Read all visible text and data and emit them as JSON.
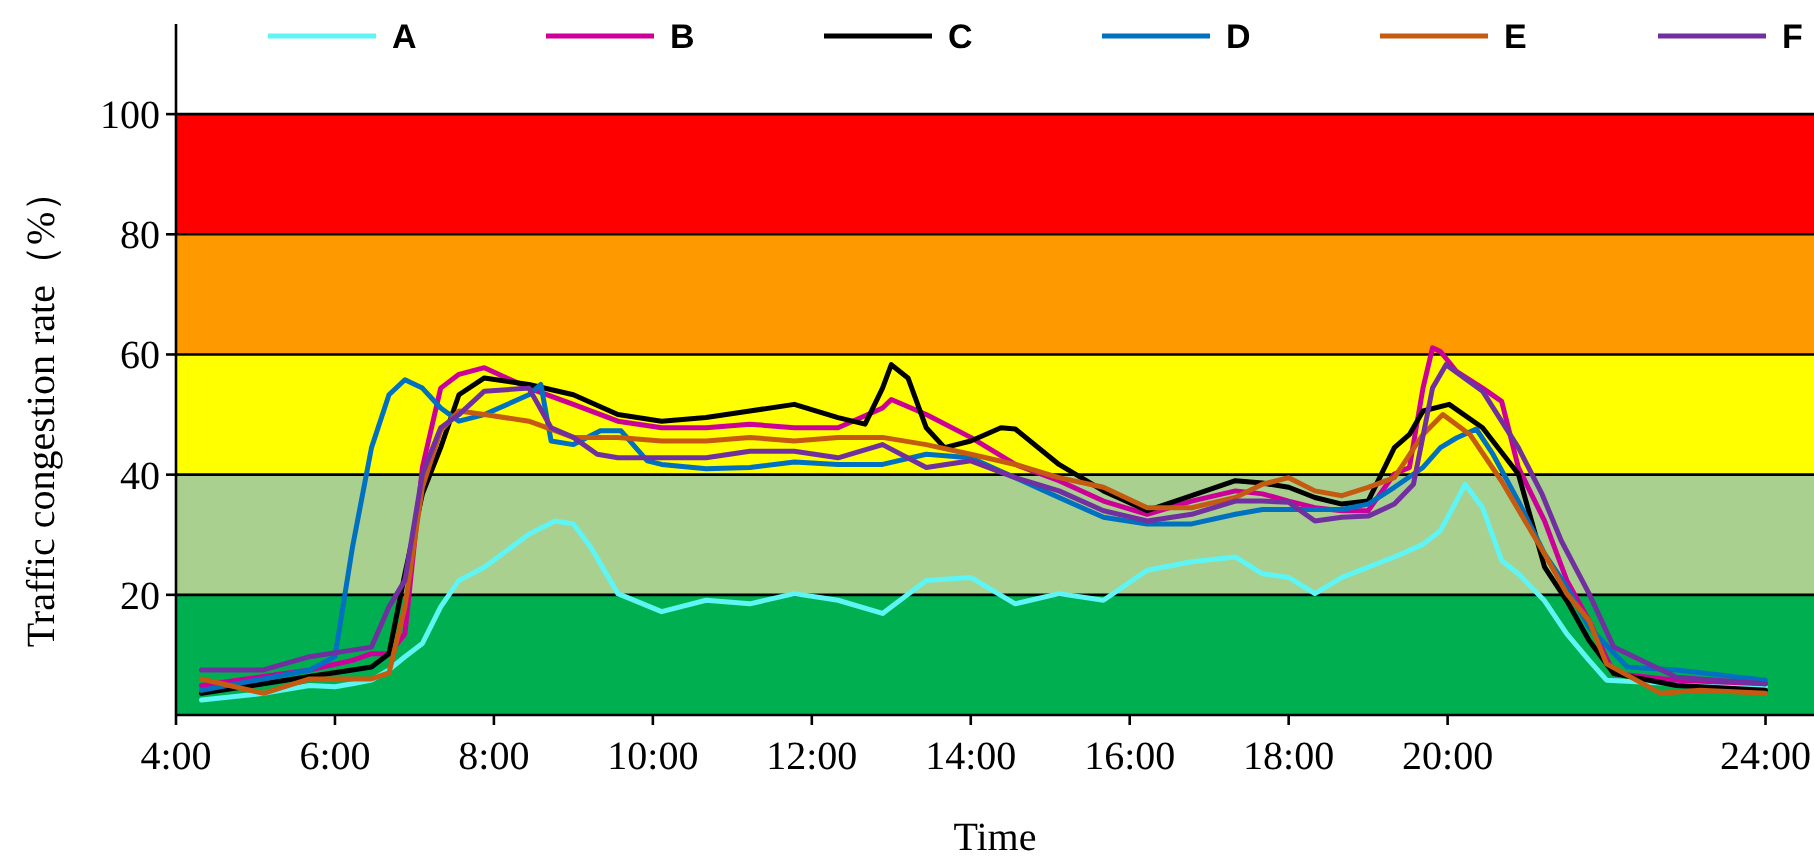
{
  "chart_data": {
    "type": "line",
    "xlabel": "Time",
    "ylabel": "Traffic congestion rate（%）",
    "xlim": [
      4,
      24.61
    ],
    "ylim": [
      0,
      115
    ],
    "xticks": [
      {
        "value": 4,
        "label": "4:00"
      },
      {
        "value": 6,
        "label": "6:00"
      },
      {
        "value": 8,
        "label": "8:00"
      },
      {
        "value": 10,
        "label": "10:00"
      },
      {
        "value": 12,
        "label": "12:00"
      },
      {
        "value": 14,
        "label": "14:00"
      },
      {
        "value": 16,
        "label": "16:00"
      },
      {
        "value": 18,
        "label": "18:00"
      },
      {
        "value": 20,
        "label": "20:00"
      },
      {
        "value": 24,
        "label": "24:00"
      }
    ],
    "yticks": [
      20,
      40,
      60,
      80,
      100
    ],
    "grid": "y",
    "legend": "top",
    "line_style": "solid",
    "marker": "none",
    "bands": [
      {
        "axis": "y",
        "from": 0,
        "to": 20,
        "color": "#00b050"
      },
      {
        "axis": "y",
        "from": 20,
        "to": 40,
        "color": "#a9d08e"
      },
      {
        "axis": "y",
        "from": 40,
        "to": 60,
        "color": "#ffff00"
      },
      {
        "axis": "y",
        "from": 60,
        "to": 80,
        "color": "#ff9900"
      },
      {
        "axis": "y",
        "from": 80,
        "to": 100,
        "color": "#ff0000"
      }
    ],
    "series": [
      {
        "name": "A",
        "color": "#5ff5f5",
        "x": [
          4.32,
          5.1,
          5.68,
          6.0,
          6.22,
          6.46,
          6.68,
          6.88,
          7.1,
          7.33,
          7.56,
          7.88,
          8.44,
          8.77,
          9.0,
          9.22,
          9.56,
          10.11,
          10.67,
          11.22,
          11.78,
          12.33,
          12.89,
          13.44,
          14.0,
          14.56,
          15.11,
          15.67,
          16.22,
          16.78,
          17.33,
          17.67,
          18.0,
          18.33,
          18.67,
          19.0,
          19.33,
          19.69,
          19.91,
          20.11,
          20.22,
          20.44,
          20.68,
          20.89,
          21.22,
          21.5,
          21.78,
          22.0,
          22.89,
          24.0
        ],
        "values": [
          2.5,
          3.6,
          4.9,
          4.7,
          5.2,
          5.8,
          7.5,
          9.7,
          11.9,
          18,
          22.4,
          24.6,
          30.1,
          32.3,
          31.8,
          27.9,
          20.2,
          17.2,
          19.1,
          18.5,
          20.2,
          19.1,
          16.9,
          22.4,
          22.9,
          18.5,
          20.2,
          19.1,
          24.1,
          25.5,
          26.3,
          23.5,
          22.9,
          20.2,
          22.9,
          24.6,
          26.3,
          28.4,
          30.7,
          35.6,
          38.4,
          34.5,
          25.7,
          23.5,
          19,
          13.5,
          9.1,
          5.8,
          5.2,
          4.7
        ]
      },
      {
        "name": "B",
        "color": "#cc0099",
        "x": [
          4.32,
          5.1,
          5.68,
          6.22,
          6.46,
          6.68,
          6.88,
          7.1,
          7.33,
          7.56,
          7.88,
          8.44,
          9.0,
          9.56,
          10.11,
          10.67,
          11.22,
          11.78,
          12.33,
          12.89,
          13.0,
          13.44,
          14.0,
          14.56,
          15.11,
          15.67,
          16.22,
          16.78,
          17.33,
          17.67,
          18.0,
          18.33,
          18.67,
          19.0,
          19.33,
          19.52,
          19.69,
          19.81,
          19.91,
          20.11,
          20.44,
          20.68,
          20.89,
          21.22,
          21.5,
          21.78,
          22.09,
          22.88,
          24.0
        ],
        "values": [
          4.9,
          6.4,
          7.5,
          9.1,
          10.2,
          10.2,
          13.5,
          41.2,
          54.4,
          56.7,
          57.8,
          54.4,
          51.7,
          48.9,
          47.8,
          47.8,
          48.4,
          47.8,
          47.8,
          51.1,
          52.5,
          50,
          46.2,
          41.7,
          39,
          35.6,
          33.4,
          35.6,
          37.3,
          36.8,
          35.6,
          34.5,
          34,
          34,
          40.1,
          41.2,
          54.4,
          61.1,
          60.5,
          57.2,
          54.4,
          52.2,
          41.2,
          32.3,
          22.4,
          15.7,
          6.9,
          5.8,
          5.2
        ]
      },
      {
        "name": "C",
        "color": "#000000",
        "x": [
          4.32,
          5.1,
          5.68,
          6.22,
          6.46,
          6.68,
          6.88,
          7.1,
          7.33,
          7.56,
          7.88,
          8.44,
          9.0,
          9.56,
          10.11,
          10.67,
          11.22,
          11.78,
          12.33,
          12.67,
          12.89,
          13.0,
          13.21,
          13.44,
          13.67,
          14.0,
          14.38,
          14.56,
          15.11,
          15.67,
          16.22,
          16.78,
          17.33,
          17.67,
          18.0,
          18.33,
          18.67,
          19.0,
          19.33,
          19.52,
          19.69,
          20.02,
          20.44,
          20.89,
          21.22,
          21.5,
          21.78,
          22.09,
          22.88,
          24.0
        ],
        "values": [
          3.6,
          5.2,
          6.4,
          7.5,
          8.0,
          10.2,
          23.5,
          36.8,
          44.5,
          53.3,
          56.1,
          55,
          53.3,
          50,
          48.9,
          49.5,
          50.6,
          51.7,
          49.5,
          48.4,
          54.4,
          58.3,
          56.1,
          47.8,
          44.5,
          45.6,
          47.8,
          47.6,
          41.7,
          37.3,
          34,
          36.5,
          39,
          38.6,
          37.9,
          36.2,
          35.1,
          35.6,
          44.5,
          46.7,
          50.6,
          51.7,
          47.8,
          40.1,
          24.6,
          19,
          12.4,
          6.9,
          4.9,
          4.1
        ]
      },
      {
        "name": "D",
        "color": "#0070c0",
        "x": [
          4.32,
          5.1,
          5.68,
          6.0,
          6.22,
          6.46,
          6.68,
          6.88,
          7.1,
          7.33,
          7.56,
          7.88,
          8.44,
          8.59,
          8.72,
          9.0,
          9.34,
          9.6,
          9.93,
          10.11,
          10.67,
          11.22,
          11.78,
          12.33,
          12.89,
          13.44,
          14.0,
          14.56,
          15.11,
          15.67,
          16.22,
          16.78,
          17.33,
          17.67,
          18.0,
          18.33,
          18.67,
          19.0,
          19.33,
          19.69,
          19.91,
          20.11,
          20.36,
          20.57,
          20.89,
          21.22,
          21.5,
          21.78,
          22.26,
          22.88,
          24.0
        ],
        "values": [
          4.1,
          6,
          7.5,
          9.7,
          27.9,
          44.5,
          53.3,
          55.8,
          54.4,
          51.1,
          48.9,
          50,
          53.3,
          55,
          45.6,
          45,
          47.3,
          47.3,
          42.3,
          41.7,
          41,
          41.2,
          42.1,
          41.7,
          41.7,
          43.4,
          42.8,
          39.5,
          36.2,
          32.9,
          31.8,
          31.8,
          33.4,
          34.2,
          34.2,
          34.2,
          34.2,
          35.1,
          37.9,
          41.2,
          44.5,
          46.1,
          47.6,
          43.4,
          35.6,
          26.8,
          21.3,
          14.6,
          8,
          7.5,
          5.8
        ]
      },
      {
        "name": "E",
        "color": "#c55a11",
        "x": [
          4.32,
          5.1,
          5.68,
          6.22,
          6.46,
          6.68,
          6.88,
          7.1,
          7.33,
          7.56,
          7.88,
          8.44,
          9.0,
          9.56,
          10.11,
          10.67,
          11.22,
          11.78,
          12.33,
          12.89,
          13.44,
          14.0,
          14.56,
          15.11,
          15.67,
          16.22,
          16.78,
          17.33,
          17.67,
          18.0,
          18.33,
          18.67,
          19.0,
          19.33,
          19.69,
          19.94,
          20.28,
          20.68,
          21.22,
          21.5,
          21.78,
          22.0,
          22.68,
          23.18,
          24.0
        ],
        "values": [
          6,
          3.6,
          6,
          6,
          6,
          7,
          18,
          37.9,
          47.3,
          50.6,
          50,
          48.9,
          46.2,
          46.2,
          45.6,
          45.6,
          46.2,
          45.6,
          46.2,
          46.2,
          45,
          43.4,
          41.7,
          39.5,
          37.9,
          34.5,
          34.5,
          36.2,
          38.4,
          39.5,
          37.3,
          36.5,
          37.9,
          39.5,
          46.7,
          50,
          46.7,
          38.9,
          26.8,
          20.2,
          15.7,
          8.5,
          3.6,
          4.1,
          3.6
        ]
      },
      {
        "name": "F",
        "color": "#7030a0",
        "x": [
          4.32,
          5.1,
          5.68,
          6.22,
          6.46,
          6.68,
          6.88,
          7.1,
          7.33,
          7.56,
          7.88,
          8.44,
          8.72,
          9.0,
          9.3,
          9.56,
          10.11,
          10.67,
          11.22,
          11.78,
          12.33,
          12.89,
          13.44,
          14.0,
          14.56,
          15.11,
          15.67,
          16.22,
          16.78,
          17.33,
          17.67,
          18.0,
          18.33,
          18.67,
          19.0,
          19.33,
          19.57,
          19.81,
          19.98,
          20.44,
          20.89,
          21.19,
          21.43,
          21.78,
          22.09,
          22.88,
          24.0
        ],
        "values": [
          7.5,
          7.5,
          9.7,
          10.8,
          11.3,
          18,
          22.4,
          40.1,
          47.8,
          50,
          53.9,
          54.4,
          47.8,
          46.2,
          43.4,
          42.8,
          42.8,
          42.8,
          43.9,
          43.9,
          42.8,
          45,
          41.2,
          42.3,
          39.5,
          37.3,
          34,
          32.3,
          33.4,
          35.6,
          35.6,
          35.4,
          32.3,
          32.9,
          33.1,
          35.1,
          38.4,
          54.4,
          58.3,
          53.9,
          44.5,
          36.7,
          29,
          20.2,
          11.3,
          6.3,
          5.2
        ]
      }
    ]
  }
}
